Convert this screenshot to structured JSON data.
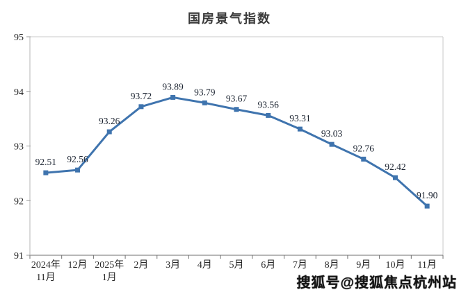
{
  "page": {
    "background_color": "#ffffff"
  },
  "chart_data": {
    "type": "line",
    "title": "国房景气指数",
    "categories": [
      "2024年\n11月",
      "12月",
      "2025年\n1月",
      "2月",
      "3月",
      "4月",
      "5月",
      "6月",
      "7月",
      "8月",
      "9月",
      "10月",
      "11月"
    ],
    "series": [
      {
        "name": "国房景气指数",
        "values": [
          92.51,
          92.56,
          93.26,
          93.72,
          93.89,
          93.79,
          93.67,
          93.56,
          93.31,
          93.03,
          92.76,
          92.42,
          91.9
        ]
      }
    ],
    "data_labels": [
      "92.51",
      "92.56",
      "93.26",
      "93.72",
      "93.89",
      "93.79",
      "93.67",
      "93.56",
      "93.31",
      "93.03",
      "92.76",
      "92.42",
      "91.90"
    ],
    "xlabel": "",
    "ylabel": "",
    "ylim": [
      91,
      95
    ],
    "yticks": [
      "91",
      "92",
      "93",
      "94",
      "95"
    ],
    "grid": false,
    "legend": "none",
    "line_color": "#3f74ae",
    "marker": "square",
    "marker_size": 7,
    "data_label_color": "#1c2431",
    "tick_label_color": "#262626",
    "axis_color_major": "#6f6f6f",
    "axis_color_minor": "#c8c8c8"
  },
  "watermark": {
    "text": "搜狐号@搜狐焦点杭州站"
  }
}
